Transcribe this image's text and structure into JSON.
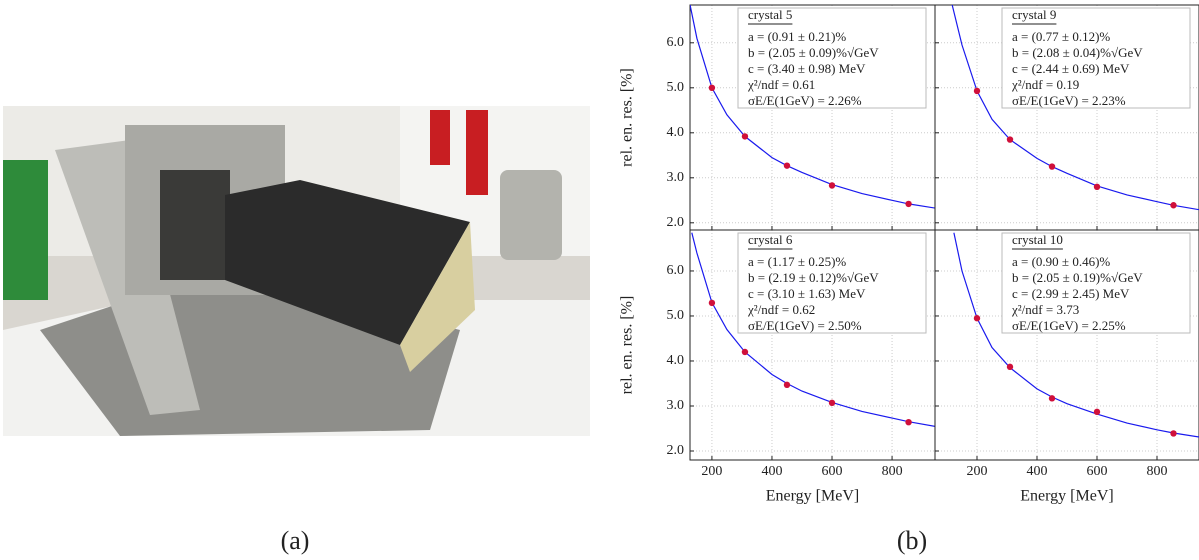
{
  "captions": {
    "a": "(a)",
    "b": "(b)"
  },
  "chart_data": [
    {
      "type": "scatter",
      "title": "crystal 5",
      "annotations": [
        "a = (0.91 ± 0.21)%",
        "b = (2.05 ± 0.09)%√GeV",
        "c = (3.40 ± 0.98) MeV",
        "χ²/ndf = 0.61",
        "σE/E(1GeV) = 2.26%"
      ],
      "y_label": "rel. en. res. [%]",
      "x": [
        200,
        310,
        450,
        600,
        855
      ],
      "values": [
        5.0,
        3.92,
        3.27,
        2.83,
        2.42
      ],
      "color": "#d0103a",
      "fit": {
        "x": [
          127,
          150,
          200,
          250,
          310,
          400,
          450,
          500,
          600,
          700,
          800,
          855,
          950
        ],
        "values": [
          6.85,
          6.1,
          5.0,
          4.4,
          3.92,
          3.45,
          3.27,
          3.12,
          2.85,
          2.65,
          2.5,
          2.42,
          2.32
        ],
        "color": "#1a1aee"
      },
      "xlim": [
        127,
        943
      ],
      "ylim": [
        1.84,
        6.84
      ],
      "xticks": [
        200,
        400,
        600,
        800
      ],
      "yticks": [
        {
          "value": 2,
          "label": "2.0"
        },
        {
          "value": 3,
          "label": "3.0"
        },
        {
          "value": 4,
          "label": "4.0"
        },
        {
          "value": 5,
          "label": "5.0"
        },
        {
          "value": 6,
          "label": "6.0"
        }
      ],
      "xtick_labels": false,
      "ytick_labels": true,
      "grid": true
    },
    {
      "type": "scatter",
      "title": "crystal 9",
      "annotations": [
        "a = (0.77 ± 0.12)%",
        "b = (2.08 ± 0.04)%√GeV",
        "c = (2.44 ± 0.69) MeV",
        "χ²/ndf = 0.19",
        "σE/E(1GeV) = 2.23%"
      ],
      "x": [
        200,
        310,
        450,
        600,
        855
      ],
      "values": [
        4.93,
        3.85,
        3.25,
        2.8,
        2.39
      ],
      "color": "#d0103a",
      "fit": {
        "x": [
          117,
          150,
          200,
          250,
          310,
          400,
          450,
          500,
          600,
          700,
          800,
          855,
          950
        ],
        "values": [
          6.85,
          5.95,
          4.93,
          4.3,
          3.85,
          3.43,
          3.25,
          3.1,
          2.82,
          2.62,
          2.47,
          2.39,
          2.28
        ],
        "color": "#1a1aee"
      },
      "xlim": [
        60,
        940
      ],
      "ylim": [
        1.84,
        6.84
      ],
      "xticks": [
        200,
        400,
        600,
        800
      ],
      "yticks": [
        2,
        3,
        4,
        5,
        6
      ],
      "xtick_labels": false,
      "ytick_labels": false,
      "grid": true
    },
    {
      "type": "scatter",
      "title": "crystal 6",
      "annotations": [
        "a = (1.17 ± 0.25)%",
        "b = (2.19 ± 0.12)%√GeV",
        "c = (3.10 ± 1.63) MeV",
        "χ²/ndf = 0.62",
        "σE/E(1GeV) = 2.50%"
      ],
      "x_label": "Energy [MeV]",
      "y_label": "rel. en. res. [%]",
      "x": [
        200,
        310,
        450,
        600,
        855
      ],
      "values": [
        5.29,
        4.2,
        3.47,
        3.07,
        2.64
      ],
      "color": "#d0103a",
      "fit": {
        "x": [
          133,
          150,
          200,
          250,
          310,
          400,
          450,
          500,
          600,
          700,
          800,
          855,
          950
        ],
        "values": [
          6.85,
          6.4,
          5.3,
          4.7,
          4.2,
          3.7,
          3.5,
          3.33,
          3.08,
          2.88,
          2.73,
          2.65,
          2.54
        ],
        "color": "#1a1aee"
      },
      "xlim": [
        127,
        943
      ],
      "ylim": [
        1.8,
        6.91
      ],
      "xticks": [
        200,
        400,
        600,
        800
      ],
      "yticks": [
        {
          "value": 2,
          "label": "2.0"
        },
        {
          "value": 3,
          "label": "3.0"
        },
        {
          "value": 4,
          "label": "4.0"
        },
        {
          "value": 5,
          "label": "5.0"
        },
        {
          "value": 6,
          "label": "6.0"
        }
      ],
      "xtick_labels": true,
      "ytick_labels": true,
      "grid": true
    },
    {
      "type": "scatter",
      "title": "crystal 10",
      "annotations": [
        "a = (0.90 ± 0.46)%",
        "b = (2.05 ± 0.19)%√GeV",
        "c = (2.99 ± 2.45) MeV",
        "χ²/ndf = 3.73",
        "σE/E(1GeV) = 2.25%"
      ],
      "x_label": "Energy [MeV]",
      "x": [
        200,
        310,
        450,
        600,
        855
      ],
      "values": [
        4.95,
        3.87,
        3.17,
        2.87,
        2.39
      ],
      "color": "#d0103a",
      "fit": {
        "x": [
          123,
          150,
          200,
          250,
          310,
          400,
          450,
          500,
          600,
          700,
          800,
          855,
          950
        ],
        "values": [
          6.85,
          6.0,
          4.95,
          4.3,
          3.85,
          3.38,
          3.2,
          3.05,
          2.82,
          2.62,
          2.47,
          2.4,
          2.3
        ],
        "color": "#1a1aee"
      },
      "xlim": [
        60,
        940
      ],
      "ylim": [
        1.8,
        6.91
      ],
      "xticks": [
        200,
        400,
        600,
        800
      ],
      "yticks": [
        2,
        3,
        4,
        5,
        6
      ],
      "xtick_labels": true,
      "ytick_labels": false,
      "grid": true
    }
  ]
}
